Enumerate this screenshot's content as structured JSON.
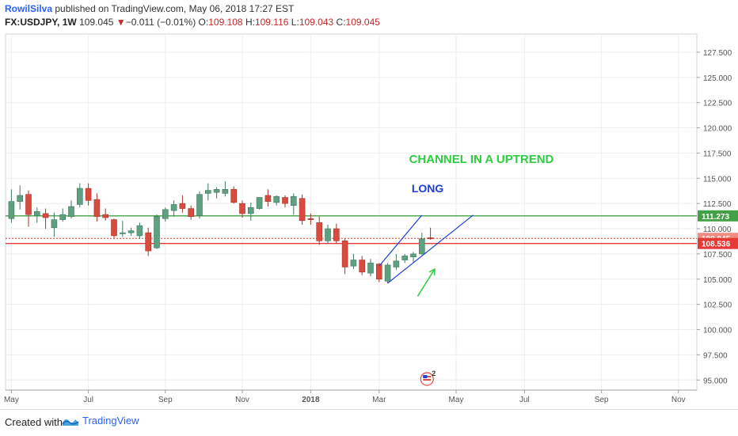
{
  "header": {
    "author": "RowilSilva",
    "published_text": "published on TradingView.com, May 06, 2018 17:27 EST",
    "symbol": "FX:USDJPY",
    "interval": "1W",
    "last": "109.045",
    "change": "−0.011 (−0.01%)",
    "open_label": "O:",
    "open": "109.108",
    "high_label": "H:",
    "high": "109.116",
    "low_label": "L:",
    "low": "109.043",
    "close_label": "C:",
    "close": "109.045"
  },
  "footer": {
    "created_with": "Created with",
    "brand": "TradingView"
  },
  "colors": {
    "up": "#5fa081",
    "down": "#d84b3e",
    "support": "#e53935",
    "resistance": "#43a047",
    "channel": "#1a3fd8",
    "annotation_green": "#2ecc40",
    "annotation_blue": "#1a3fd8"
  },
  "chart_data": {
    "type": "candlestick",
    "ylim": [
      94.0,
      129.3
    ],
    "y_ticks": [
      "127.500",
      "125.000",
      "122.500",
      "120.000",
      "117.500",
      "115.000",
      "112.500",
      "110.000",
      "107.500",
      "105.000",
      "102.500",
      "100.000",
      "97.500",
      "95.000"
    ],
    "x_ticks": [
      {
        "label": "May",
        "bar": 0
      },
      {
        "label": "Jul",
        "bar": 9
      },
      {
        "label": "Sep",
        "bar": 18
      },
      {
        "label": "Nov",
        "bar": 27
      },
      {
        "label": "2018",
        "bar": 35
      },
      {
        "label": "Mar",
        "bar": 43
      },
      {
        "label": "May",
        "bar": 52
      },
      {
        "label": "Jul",
        "bar": 60
      },
      {
        "label": "Sep",
        "bar": 69
      },
      {
        "label": "Nov",
        "bar": 78
      }
    ],
    "candles": [
      {
        "o": 111.0,
        "h": 113.9,
        "l": 110.6,
        "c": 112.7
      },
      {
        "o": 112.7,
        "h": 114.3,
        "l": 111.9,
        "c": 113.3
      },
      {
        "o": 113.4,
        "h": 113.8,
        "l": 110.2,
        "c": 111.4
      },
      {
        "o": 111.3,
        "h": 112.1,
        "l": 110.6,
        "c": 111.7
      },
      {
        "o": 111.5,
        "h": 112.0,
        "l": 110.0,
        "c": 111.1
      },
      {
        "o": 110.1,
        "h": 111.6,
        "l": 109.2,
        "c": 110.9
      },
      {
        "o": 110.9,
        "h": 112.0,
        "l": 110.7,
        "c": 111.4
      },
      {
        "o": 111.2,
        "h": 112.8,
        "l": 111.0,
        "c": 112.2
      },
      {
        "o": 112.4,
        "h": 114.5,
        "l": 112.1,
        "c": 114.0
      },
      {
        "o": 114.0,
        "h": 114.5,
        "l": 112.3,
        "c": 112.8
      },
      {
        "o": 112.9,
        "h": 113.5,
        "l": 110.7,
        "c": 111.2
      },
      {
        "o": 111.4,
        "h": 112.0,
        "l": 110.8,
        "c": 111.1
      },
      {
        "o": 110.9,
        "h": 111.0,
        "l": 109.1,
        "c": 109.3
      },
      {
        "o": 109.5,
        "h": 110.8,
        "l": 109.2,
        "c": 109.6
      },
      {
        "o": 109.6,
        "h": 110.1,
        "l": 109.3,
        "c": 109.8
      },
      {
        "o": 109.3,
        "h": 110.6,
        "l": 109.0,
        "c": 110.3
      },
      {
        "o": 109.6,
        "h": 110.1,
        "l": 107.3,
        "c": 107.8
      },
      {
        "o": 108.1,
        "h": 111.4,
        "l": 108.0,
        "c": 111.2
      },
      {
        "o": 111.0,
        "h": 112.1,
        "l": 110.7,
        "c": 111.9
      },
      {
        "o": 111.8,
        "h": 112.8,
        "l": 111.2,
        "c": 112.4
      },
      {
        "o": 112.5,
        "h": 113.3,
        "l": 111.6,
        "c": 112.0
      },
      {
        "o": 112.0,
        "h": 112.3,
        "l": 110.9,
        "c": 111.2
      },
      {
        "o": 111.3,
        "h": 113.7,
        "l": 111.0,
        "c": 113.4
      },
      {
        "o": 113.5,
        "h": 114.5,
        "l": 112.8,
        "c": 113.8
      },
      {
        "o": 113.6,
        "h": 114.1,
        "l": 113.0,
        "c": 113.9
      },
      {
        "o": 113.5,
        "h": 114.7,
        "l": 113.2,
        "c": 113.9
      },
      {
        "o": 113.9,
        "h": 114.2,
        "l": 112.5,
        "c": 112.6
      },
      {
        "o": 112.5,
        "h": 112.8,
        "l": 111.1,
        "c": 111.5
      },
      {
        "o": 111.5,
        "h": 112.6,
        "l": 110.8,
        "c": 112.1
      },
      {
        "o": 112.0,
        "h": 113.1,
        "l": 111.9,
        "c": 113.1
      },
      {
        "o": 113.3,
        "h": 113.9,
        "l": 112.2,
        "c": 112.7
      },
      {
        "o": 112.6,
        "h": 113.3,
        "l": 112.3,
        "c": 113.2
      },
      {
        "o": 113.1,
        "h": 113.3,
        "l": 112.1,
        "c": 112.5
      },
      {
        "o": 112.3,
        "h": 113.5,
        "l": 111.4,
        "c": 113.2
      },
      {
        "o": 113.0,
        "h": 113.4,
        "l": 110.4,
        "c": 110.8
      },
      {
        "o": 111.0,
        "h": 111.5,
        "l": 110.4,
        "c": 110.9
      },
      {
        "o": 110.6,
        "h": 111.2,
        "l": 108.4,
        "c": 108.8
      },
      {
        "o": 108.8,
        "h": 110.4,
        "l": 108.5,
        "c": 110.0
      },
      {
        "o": 110.0,
        "h": 110.5,
        "l": 108.5,
        "c": 108.8
      },
      {
        "o": 108.8,
        "h": 109.0,
        "l": 105.5,
        "c": 106.2
      },
      {
        "o": 106.3,
        "h": 107.5,
        "l": 106.0,
        "c": 106.9
      },
      {
        "o": 106.9,
        "h": 107.3,
        "l": 105.4,
        "c": 105.7
      },
      {
        "o": 105.6,
        "h": 107.0,
        "l": 105.3,
        "c": 106.6
      },
      {
        "o": 106.5,
        "h": 106.6,
        "l": 104.7,
        "c": 105.0
      },
      {
        "o": 104.8,
        "h": 106.6,
        "l": 104.6,
        "c": 106.4
      },
      {
        "o": 106.2,
        "h": 107.5,
        "l": 105.9,
        "c": 106.8
      },
      {
        "o": 106.9,
        "h": 107.5,
        "l": 106.6,
        "c": 107.3
      },
      {
        "o": 107.2,
        "h": 107.7,
        "l": 106.6,
        "c": 107.5
      },
      {
        "o": 107.5,
        "h": 109.6,
        "l": 107.4,
        "c": 109.0
      },
      {
        "o": 109.1,
        "h": 110.1,
        "l": 108.9,
        "c": 109.0
      }
    ],
    "horizontal_lines": [
      {
        "value": 111.273,
        "label": "111.273",
        "role": "resistance"
      },
      {
        "value": 109.045,
        "label": "109.045",
        "role": "last-price",
        "dashed": true
      },
      {
        "value": 108.536,
        "label": "108.536",
        "role": "support"
      }
    ],
    "channel": {
      "lower": {
        "from": {
          "bar": 44,
          "y": 104.6
        },
        "to": {
          "bar": 54,
          "y": 111.35
        }
      },
      "upper": {
        "from": {
          "bar": 43,
          "y": 106.3
        },
        "to": {
          "bar": 48,
          "y": 111.35
        }
      }
    },
    "annotations": [
      {
        "text": "CHANNEL IN A UPTREND",
        "bar": 46.5,
        "y": 116.5,
        "role": "green"
      },
      {
        "text": "LONG",
        "bar": 46.8,
        "y": 113.6,
        "role": "blue"
      }
    ],
    "arrow": {
      "from": {
        "bar": 47.5,
        "y": 103.3
      },
      "to": {
        "bar": 49.5,
        "y": 106.0
      }
    },
    "event_badge": {
      "bar": 48.6,
      "y": 95.1,
      "count": "2"
    }
  }
}
